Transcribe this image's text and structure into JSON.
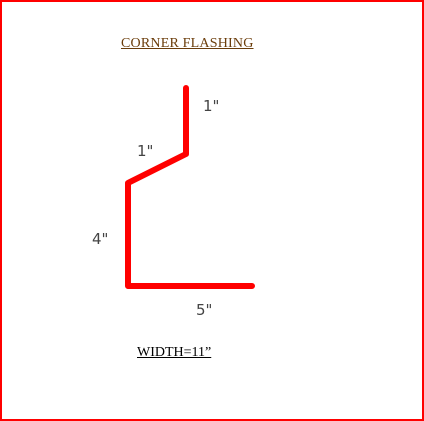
{
  "title": "CORNER  FLASHING",
  "colors": {
    "frame": "#ff0000",
    "profile": "#ff0000",
    "title": "#6b3d0b",
    "dimensions": "#444444",
    "width_label": "#000000"
  },
  "dimensions": {
    "top_leg": "1\"",
    "slope_leg": "1\"",
    "vertical_leg": "4\"",
    "bottom_leg": "5\""
  },
  "width_label": "WIDTH=11”"
}
